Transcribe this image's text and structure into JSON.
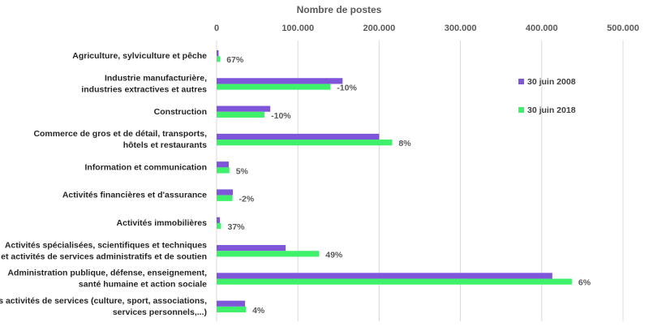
{
  "chart_data": {
    "type": "bar",
    "orientation": "horizontal",
    "title": "Nombre de postes",
    "xlim": [
      0,
      500000
    ],
    "ticks": [
      {
        "value": 0,
        "label": "0"
      },
      {
        "value": 100000,
        "label": "100.000"
      },
      {
        "value": 200000,
        "label": "200.000"
      },
      {
        "value": 300000,
        "label": "300.000"
      },
      {
        "value": 400000,
        "label": "400.000"
      },
      {
        "value": 500000,
        "label": "500.000"
      }
    ],
    "categories": [
      [
        "Agriculture, sylviculture et pêche"
      ],
      [
        "Industrie manufacturière,",
        "industries extractives et autres"
      ],
      [
        "Construction"
      ],
      [
        "Commerce de gros et de détail, transports,",
        "hôtels et restaurants"
      ],
      [
        "Information et communication"
      ],
      [
        "Activités financières et d'assurance"
      ],
      [
        "Activités immobilières"
      ],
      [
        "Activités spécialisées, scientifiques et techniques",
        "et activités de services administratifs et de soutien"
      ],
      [
        "Administration publique, défense, enseignement,",
        "santé humaine et action sociale"
      ],
      [
        "Autres activités de services (culture, sport, associations,",
        "services personnels,...)"
      ]
    ],
    "series": [
      {
        "name": "30 juin 2008",
        "color": "#7f56d9",
        "values": [
          2500,
          155000,
          66000,
          200000,
          15000,
          20000,
          4000,
          85000,
          413000,
          35000
        ]
      },
      {
        "name": "30 juin 2018",
        "color": "#3ff06a",
        "values": [
          4200,
          140000,
          59000,
          216000,
          15700,
          19500,
          5500,
          126000,
          437000,
          36000
        ]
      }
    ],
    "data_labels": [
      "67%",
      "-10%",
      "-10%",
      "8%",
      "5%",
      "-2%",
      "37%",
      "49%",
      "6%",
      "4%"
    ],
    "legend": "right",
    "grid": true
  }
}
